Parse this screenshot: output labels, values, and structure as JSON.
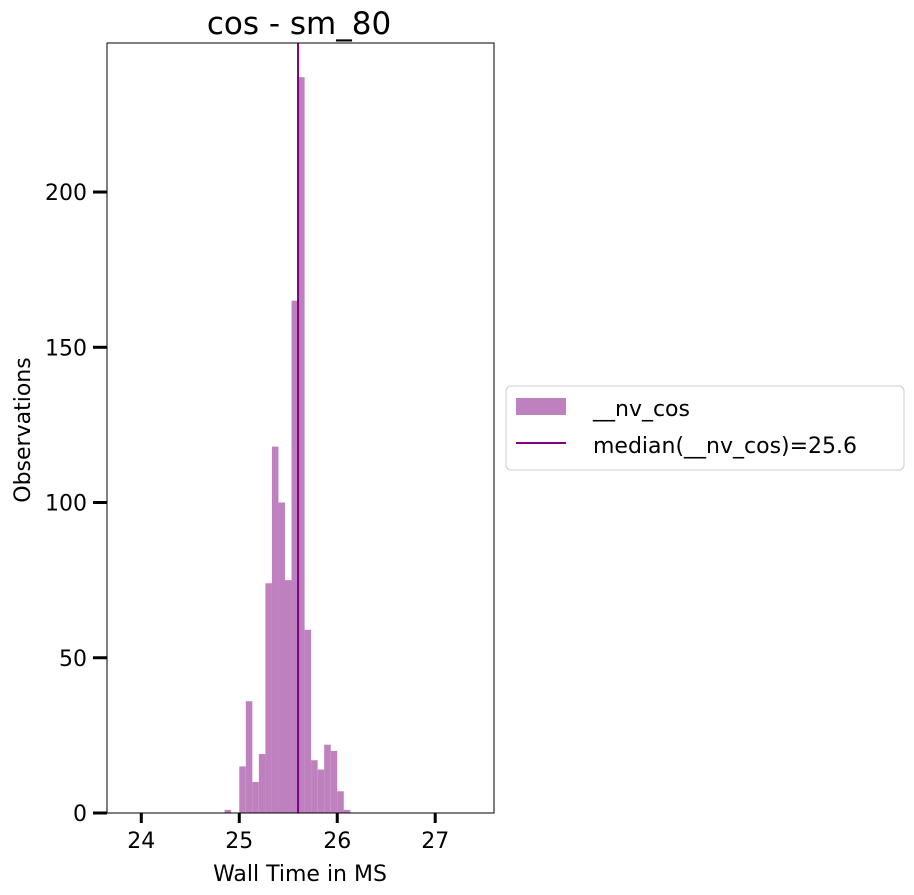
{
  "chart_data": {
    "type": "bar",
    "title": "cos - sm_80",
    "xlabel": "Wall Time in MS",
    "ylabel": "Observations",
    "xlim": [
      23.65,
      27.6
    ],
    "ylim": [
      0,
      248
    ],
    "xticks": [
      24,
      25,
      26,
      27
    ],
    "yticks": [
      0,
      50,
      100,
      150,
      200
    ],
    "grid": false,
    "legend_position": "center-left outside plot",
    "series": [
      {
        "name": "__nv_cos",
        "color": "#bf80bf",
        "bin_width": 0.0667,
        "bins": [
          {
            "x": 24.85,
            "count": 1
          },
          {
            "x": 25.0,
            "count": 15
          },
          {
            "x": 25.0667,
            "count": 36
          },
          {
            "x": 25.1333,
            "count": 10
          },
          {
            "x": 25.2,
            "count": 19
          },
          {
            "x": 25.2667,
            "count": 74
          },
          {
            "x": 25.3333,
            "count": 118
          },
          {
            "x": 25.4,
            "count": 100
          },
          {
            "x": 25.4667,
            "count": 75
          },
          {
            "x": 25.5333,
            "count": 165
          },
          {
            "x": 25.6,
            "count": 237
          },
          {
            "x": 25.6667,
            "count": 59
          },
          {
            "x": 25.7333,
            "count": 17
          },
          {
            "x": 25.8,
            "count": 14
          },
          {
            "x": 25.8667,
            "count": 22
          },
          {
            "x": 25.9333,
            "count": 20
          },
          {
            "x": 26.0,
            "count": 7
          },
          {
            "x": 26.0667,
            "count": 1
          }
        ]
      }
    ],
    "median": {
      "name": "median(__nv_cos)=25.6",
      "value": 25.6,
      "color": "#800080"
    }
  }
}
